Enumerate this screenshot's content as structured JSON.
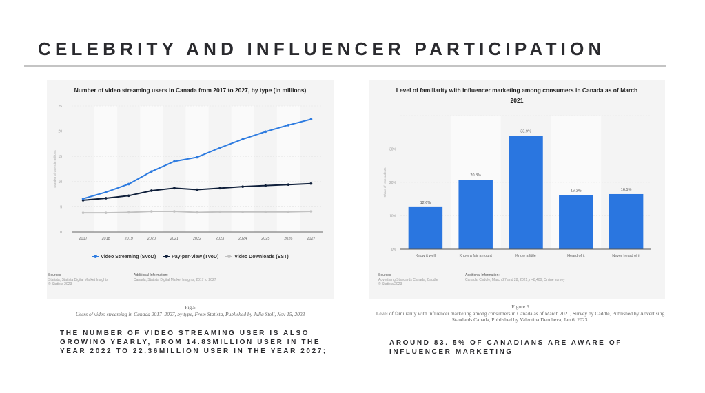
{
  "page": {
    "title": "CELEBRITY AND INFLUENCER PARTICIPATION"
  },
  "left": {
    "caption_fig": "Fig.5",
    "caption_text": "Users of video streaming in Canada 2017–2027, by type, From Statista, Published by Julia Stoll, Nov 15, 2023",
    "body": "THE NUMBER OF VIDEO STREAMING USER IS ALSO GROWING YEARLY, FROM 14.83MILLION USER IN THE YEAR 2022 TO 22.36MILLION USER IN THE YEAR 2027;",
    "sources_label": "Sources",
    "sources_lines": [
      "Statista; Statista Digital Market Insights",
      "© Statista 2023"
    ],
    "additional_label": "Additional Information:",
    "additional_text": "Canada; Statista Digital Market Insights; 2017 to 2027"
  },
  "right": {
    "caption_fig": "Figure 6",
    "caption_text": "Level of familiarity with influencer marketing among consumers in Canada as of March 2021, Survey by Caddle, Published by Advertising Standards Canada, Published by Valentina Dencheva, Jan 6, 2023.",
    "body": "AROUND 83. 5% OF CANADIANS ARE AWARE OF INFLUENCER MARKETING",
    "sources_label": "Sources",
    "sources_lines": [
      "Advertising Standards Canada; Caddle",
      "© Statista 2023"
    ],
    "additional_label": "Additional Information:",
    "additional_text": "Canada; Caddle; March 27 and 28, 2021; n=8,400; Online survey"
  },
  "colors": {
    "svod": "#2d7be0",
    "tvod": "#0f1f3a",
    "est": "#c2c2c2",
    "bar": "#2a76e0"
  },
  "chart_data": [
    {
      "type": "line",
      "title": "Number of video streaming users in Canada from 2017 to 2027, by type (in millions)",
      "xlabel": "",
      "ylabel": "Number of users in millions",
      "x": [
        "2017",
        "2018",
        "2019",
        "2020",
        "2021",
        "2022",
        "2023",
        "2024",
        "2025",
        "2026",
        "2027"
      ],
      "ylim": [
        0,
        25
      ],
      "yticks": [
        0,
        5,
        10,
        15,
        20,
        25
      ],
      "grid": true,
      "legend": "bottom",
      "series": [
        {
          "name": "Video Streaming (SVoD)",
          "values": [
            6.6,
            7.9,
            9.5,
            12.0,
            14.0,
            14.83,
            16.7,
            18.4,
            19.9,
            21.2,
            22.36
          ]
        },
        {
          "name": "Pay-per-View (TVoD)",
          "values": [
            6.3,
            6.7,
            7.2,
            8.2,
            8.7,
            8.4,
            8.7,
            9.0,
            9.2,
            9.4,
            9.6
          ]
        },
        {
          "name": "Video Downloads (EST)",
          "values": [
            3.8,
            3.8,
            3.9,
            4.1,
            4.1,
            3.9,
            4.0,
            4.0,
            4.0,
            4.0,
            4.1
          ]
        }
      ]
    },
    {
      "type": "bar",
      "title": "Level of familiarity with influencer marketing among consumers in Canada as of March 2021",
      "xlabel": "",
      "ylabel": "Share of respondents",
      "categories": [
        "Know it well",
        "Know a fair amount",
        "Know a little",
        "Heard of it",
        "Never heard of it"
      ],
      "values": [
        12.6,
        20.8,
        33.9,
        16.2,
        16.5
      ],
      "value_labels": [
        "12.6%",
        "20.8%",
        "33.9%",
        "16.2%",
        "16.5%"
      ],
      "ylim": [
        0,
        40
      ],
      "yticks": [
        0,
        10,
        20,
        30
      ],
      "ytick_labels": [
        "0%",
        "10%",
        "20%",
        "30%"
      ],
      "grid": true
    }
  ]
}
